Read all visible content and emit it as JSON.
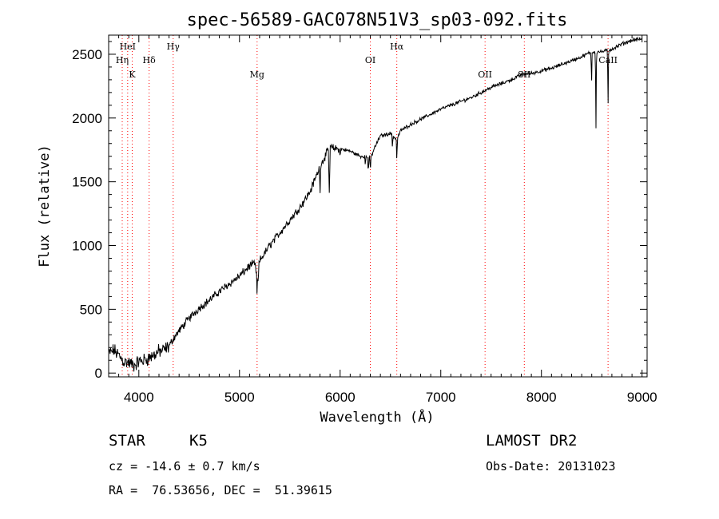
{
  "chart_data": {
    "type": "line",
    "title": "spec-56589-GAC078N51V3_sp03-092.fits",
    "xlabel": "Wavelength (Å)",
    "ylabel": "Flux (relative)",
    "xlim": [
      3700,
      9050
    ],
    "ylim": [
      -30,
      2650
    ],
    "xticks": [
      4000,
      5000,
      6000,
      7000,
      8000,
      9000
    ],
    "yticks": [
      0,
      500,
      1000,
      1500,
      2000,
      2500
    ],
    "xtick_labels": [
      "4000",
      "5000",
      "6000",
      "7000",
      "8000",
      "9000"
    ],
    "ytick_labels": [
      "0",
      "500",
      "1000",
      "1500",
      "2000",
      "2500"
    ],
    "line_color": "#000000",
    "marker_color": "#ff0000",
    "spectral_lines": [
      {
        "label": "HeI",
        "x": 3889,
        "row": 0
      },
      {
        "label": "Hη",
        "x": 3835,
        "row": 1
      },
      {
        "label": "K",
        "x": 3934,
        "row": 2
      },
      {
        "label": "Hδ",
        "x": 4102,
        "row": 1
      },
      {
        "label": "Hγ",
        "x": 4341,
        "row": 0
      },
      {
        "label": "Mg",
        "x": 5175,
        "row": 2
      },
      {
        "label": "OI",
        "x": 6300,
        "row": 1
      },
      {
        "label": "Hα",
        "x": 6563,
        "row": 0
      },
      {
        "label": "OII",
        "x": 7440,
        "row": 2
      },
      {
        "label": "SII",
        "x": 7830,
        "row": 2
      },
      {
        "label": "CaII",
        "x": 8662,
        "row": 1
      }
    ],
    "spectrum_anchors": [
      [
        3700,
        150
      ],
      [
        3750,
        180
      ],
      [
        3800,
        140
      ],
      [
        3850,
        90
      ],
      [
        3900,
        80
      ],
      [
        3950,
        60
      ],
      [
        4000,
        90
      ],
      [
        4050,
        100
      ],
      [
        4100,
        120
      ],
      [
        4150,
        140
      ],
      [
        4200,
        170
      ],
      [
        4250,
        180
      ],
      [
        4300,
        210
      ],
      [
        4350,
        280
      ],
      [
        4400,
        330
      ],
      [
        4500,
        430
      ],
      [
        4600,
        510
      ],
      [
        4700,
        570
      ],
      [
        4800,
        640
      ],
      [
        4900,
        700
      ],
      [
        5000,
        760
      ],
      [
        5100,
        840
      ],
      [
        5150,
        860
      ],
      [
        5175,
        760
      ],
      [
        5200,
        880
      ],
      [
        5300,
        1000
      ],
      [
        5400,
        1100
      ],
      [
        5500,
        1200
      ],
      [
        5600,
        1300
      ],
      [
        5700,
        1420
      ],
      [
        5800,
        1620
      ],
      [
        5850,
        1700
      ],
      [
        5900,
        1770
      ],
      [
        5950,
        1760
      ],
      [
        6000,
        1760
      ],
      [
        6100,
        1740
      ],
      [
        6200,
        1700
      ],
      [
        6250,
        1700
      ],
      [
        6300,
        1680
      ],
      [
        6350,
        1780
      ],
      [
        6400,
        1860
      ],
      [
        6500,
        1880
      ],
      [
        6563,
        1830
      ],
      [
        6600,
        1900
      ],
      [
        6700,
        1950
      ],
      [
        6800,
        1990
      ],
      [
        6900,
        2030
      ],
      [
        7000,
        2070
      ],
      [
        7100,
        2100
      ],
      [
        7200,
        2130
      ],
      [
        7300,
        2160
      ],
      [
        7400,
        2200
      ],
      [
        7500,
        2240
      ],
      [
        7600,
        2270
      ],
      [
        7700,
        2300
      ],
      [
        7800,
        2340
      ],
      [
        7900,
        2350
      ],
      [
        8000,
        2370
      ],
      [
        8100,
        2390
      ],
      [
        8200,
        2420
      ],
      [
        8300,
        2450
      ],
      [
        8400,
        2480
      ],
      [
        8500,
        2520
      ],
      [
        8600,
        2520
      ],
      [
        8700,
        2540
      ],
      [
        8800,
        2580
      ],
      [
        8900,
        2610
      ],
      [
        9000,
        2620
      ]
    ],
    "absorption_dips": [
      [
        5175,
        160
      ],
      [
        5185,
        130
      ],
      [
        5800,
        200
      ],
      [
        5890,
        300
      ],
      [
        5895,
        280
      ],
      [
        6000,
        80
      ],
      [
        6250,
        80
      ],
      [
        6280,
        120
      ],
      [
        6300,
        100
      ],
      [
        6520,
        100
      ],
      [
        6563,
        180
      ],
      [
        8498,
        270
      ],
      [
        8542,
        620
      ],
      [
        8662,
        480
      ]
    ]
  },
  "info": {
    "object_class": "STAR",
    "subclass": "K5",
    "redshift": "cz = -14.6 ± 0.7 km/s",
    "coords": "RA =  76.53656, DEC =  51.39615",
    "survey": "LAMOST DR2",
    "obs_date": "Obs-Date: 20131023"
  }
}
